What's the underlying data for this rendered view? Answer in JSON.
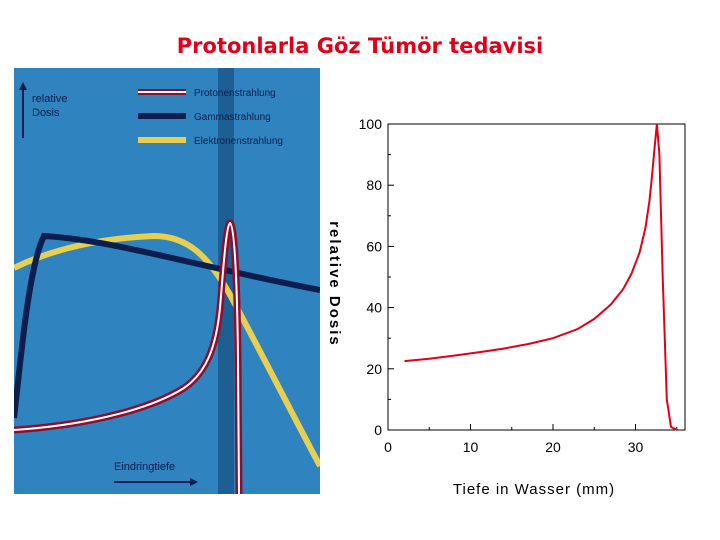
{
  "slide": {
    "title": "Protonlarla Göz Tümör tedavisi"
  },
  "colors": {
    "title": "#e0001a",
    "panel_bg": "#2f83be",
    "proton": "#8a1030",
    "gamma": "#0d1d4d",
    "electron": "#e8cf52",
    "curve_red": "#e0001a"
  },
  "chart_data": [
    {
      "type": "line",
      "ylabel": "relative Dosis",
      "xlabel": "Eindringtiefe",
      "legend_position": "top-right",
      "series": [
        {
          "name": "Protonenstrahlung",
          "color": "#8a1030"
        },
        {
          "name": "Gammastrahlung",
          "color": "#0d1d4d"
        },
        {
          "name": "Elektronenstrahlung",
          "color": "#e8cf52"
        }
      ],
      "target_zone": "vertical band at the proton Bragg peak"
    },
    {
      "type": "line",
      "xlabel": "Tiefe in Wasser (mm)",
      "ylabel": "relative Dosis",
      "xlim": [
        0,
        36
      ],
      "ylim": [
        0,
        100
      ],
      "xticks": [
        "0",
        "10",
        "20",
        "30"
      ],
      "yticks": [
        "0",
        "20",
        "40",
        "60",
        "80",
        "100"
      ],
      "grid": false,
      "series": [
        {
          "color": "#e0001a",
          "x": [
            2,
            5,
            8,
            11,
            14,
            17,
            20,
            23,
            25,
            27,
            28.5,
            29.5,
            30.5,
            31.2,
            31.7,
            32.0,
            32.3,
            32.6,
            32.9,
            33.3,
            33.8,
            34.3,
            35
          ],
          "y": [
            22.5,
            23.3,
            24.3,
            25.4,
            26.6,
            28.1,
            30.0,
            33.0,
            36.3,
            41.0,
            46.0,
            51.0,
            58.0,
            66.0,
            75.0,
            83.0,
            92.0,
            100,
            90.0,
            50.0,
            10.0,
            1.0,
            0
          ]
        }
      ]
    }
  ]
}
